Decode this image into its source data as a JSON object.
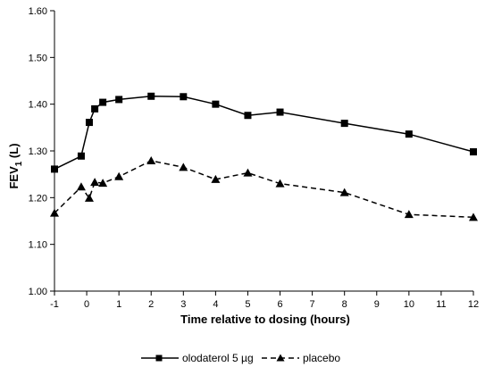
{
  "chart_data": {
    "type": "line",
    "xlabel": "Time relative to dosing (hours)",
    "ylabel": "FEV1 (L)",
    "ylabel_main": "FEV",
    "ylabel_sub": "1",
    "ylabel_unit": " (L)",
    "xlim": [
      -1,
      12
    ],
    "ylim": [
      1.0,
      1.6
    ],
    "x_ticks": [
      -1,
      0,
      1,
      2,
      3,
      4,
      5,
      6,
      7,
      8,
      9,
      10,
      11,
      12
    ],
    "y_ticks": [
      "1.00",
      "1.10",
      "1.20",
      "1.30",
      "1.40",
      "1.50",
      "1.60"
    ],
    "grid": false,
    "legend_position": "bottom",
    "series": [
      {
        "name": "olodaterol 5 µg",
        "marker": "square",
        "line": "solid",
        "color": "#000000",
        "x": [
          -1,
          -0.17,
          0.08,
          0.25,
          0.5,
          1,
          2,
          3,
          4,
          5,
          6,
          8,
          10,
          12
        ],
        "y": [
          1.261,
          1.289,
          1.361,
          1.39,
          1.404,
          1.41,
          1.417,
          1.416,
          1.4,
          1.376,
          1.383,
          1.359,
          1.336,
          1.298
        ]
      },
      {
        "name": "placebo",
        "marker": "triangle",
        "line": "dashed",
        "color": "#000000",
        "x": [
          -1,
          -0.17,
          0.08,
          0.25,
          0.5,
          1,
          2,
          3,
          4,
          5,
          6,
          8,
          10,
          12
        ],
        "y": [
          1.167,
          1.223,
          1.199,
          1.233,
          1.231,
          1.245,
          1.279,
          1.265,
          1.239,
          1.253,
          1.23,
          1.211,
          1.164,
          1.158
        ]
      }
    ]
  }
}
